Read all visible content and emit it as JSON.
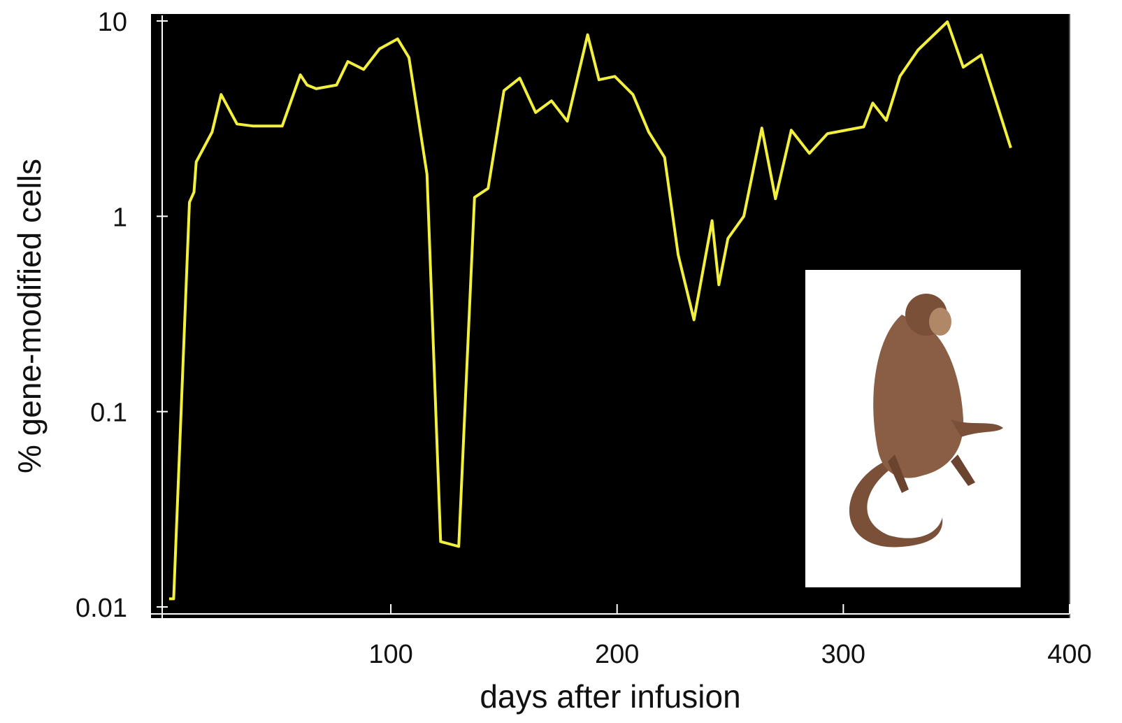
{
  "chart_data": {
    "type": "line",
    "xlabel": "days after infusion",
    "ylabel": "% gene-modified cells",
    "log_y": true,
    "xlim": [
      -6,
      400
    ],
    "xticks": [
      100,
      200,
      300,
      400
    ],
    "ylim": [
      0.01,
      10
    ],
    "yticks": [
      0.01,
      0.1,
      1,
      10
    ],
    "series": [
      {
        "color": "#f2f03c",
        "x": [
          2,
          4,
          11,
          13,
          14,
          21,
          25,
          32,
          39,
          52,
          60,
          63,
          67,
          76,
          81,
          88,
          95,
          103,
          108,
          116,
          122,
          130,
          137,
          143,
          150,
          157,
          164,
          171,
          178,
          187,
          192,
          199,
          207,
          214,
          221,
          227,
          234,
          242,
          245,
          249,
          256,
          264,
          270,
          277,
          285,
          293,
          309,
          313,
          319,
          325,
          333,
          346,
          353,
          361,
          374
        ],
        "values": [
          0.011,
          0.011,
          1.18,
          1.33,
          1.9,
          2.7,
          4.2,
          2.97,
          2.9,
          2.9,
          5.3,
          4.7,
          4.5,
          4.7,
          6.2,
          5.65,
          7.2,
          8.1,
          6.5,
          1.64,
          0.0216,
          0.0204,
          1.25,
          1.39,
          4.4,
          5.1,
          3.4,
          3.9,
          3.07,
          8.5,
          5.0,
          5.2,
          4.2,
          2.7,
          2.0,
          0.635,
          0.295,
          0.95,
          0.446,
          0.77,
          1.0,
          2.83,
          1.23,
          2.76,
          2.1,
          2.65,
          2.87,
          3.8,
          3.1,
          5.2,
          7.1,
          9.9,
          5.8,
          6.7,
          2.24
        ]
      }
    ]
  }
}
